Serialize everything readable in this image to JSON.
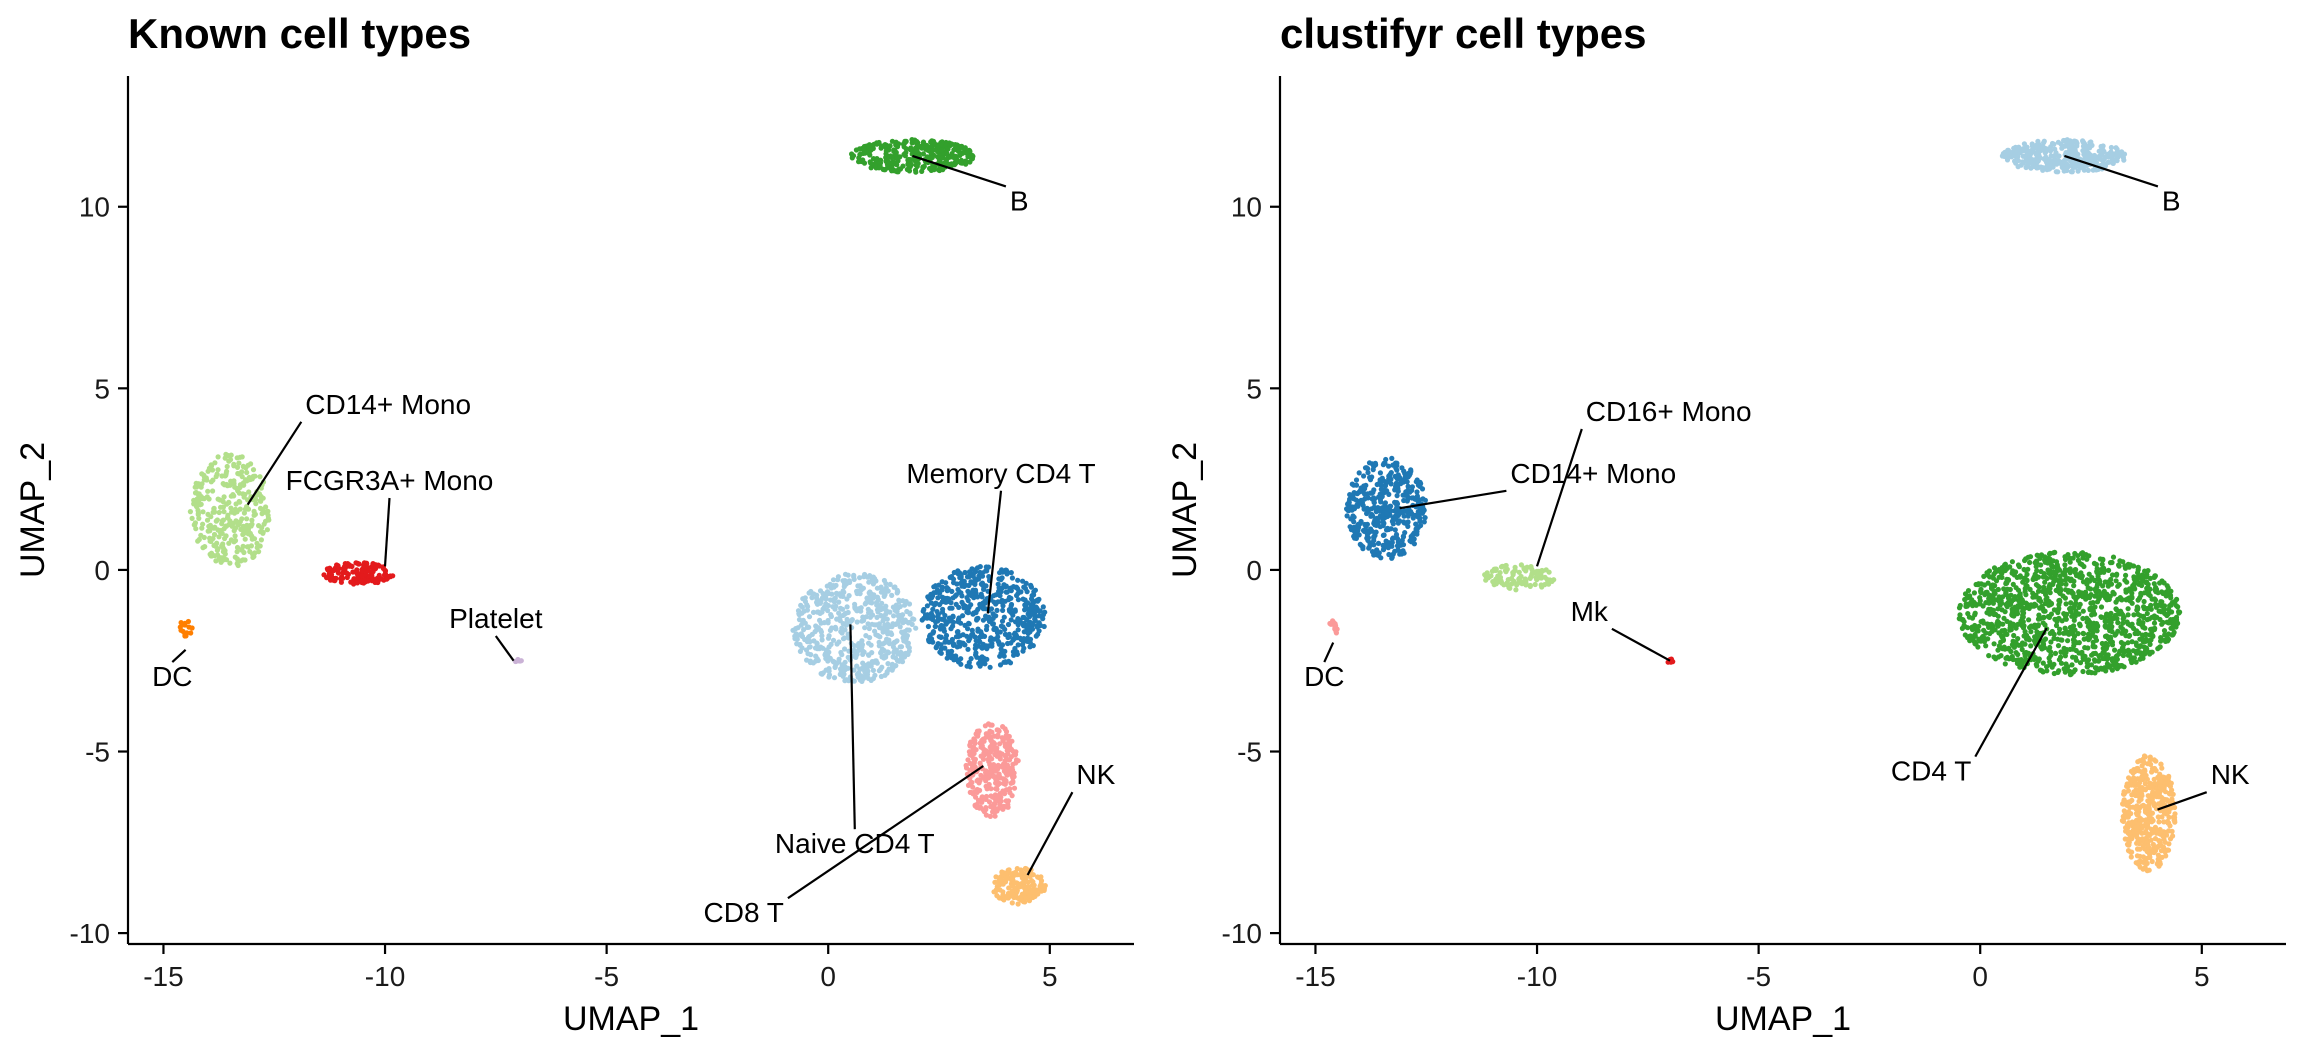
{
  "chart_data": [
    {
      "type": "scatter",
      "title": "Known cell types",
      "xlabel": "UMAP_1",
      "ylabel": "UMAP_2",
      "xlim": [
        -15.8,
        6.9
      ],
      "ylim": [
        -10.3,
        13.6
      ],
      "xticks": [
        -15,
        -10,
        -5,
        0,
        5
      ],
      "yticks": [
        -10,
        -5,
        0,
        5,
        10
      ],
      "grid": false,
      "legend": "none",
      "clusters": [
        {
          "name": "B",
          "color": "#33a02c",
          "center": [
            1.9,
            11.4
          ],
          "spread": [
            1.4,
            0.45
          ],
          "n": 340
        },
        {
          "name": "CD14+ Mono",
          "color": "#b2df8a",
          "center": [
            -13.5,
            1.6
          ],
          "spread": [
            0.9,
            1.6
          ],
          "n": 330
        },
        {
          "name": "FCGR3A+ Mono",
          "color": "#e31a1c",
          "center": [
            -10.6,
            -0.1
          ],
          "spread": [
            0.8,
            0.3
          ],
          "n": 150
        },
        {
          "name": "DC",
          "color": "#ff7f00",
          "center": [
            -14.5,
            -1.6
          ],
          "spread": [
            0.15,
            0.25
          ],
          "n": 16
        },
        {
          "name": "Platelet",
          "color": "#cab2d6",
          "center": [
            -7.0,
            -2.5
          ],
          "spread": [
            0.1,
            0.05
          ],
          "n": 6
        },
        {
          "name": "Memory CD4 T",
          "color": "#1f78b4",
          "center": [
            3.5,
            -1.3
          ],
          "spread": [
            1.4,
            1.4
          ],
          "n": 560
        },
        {
          "name": "Naive CD4 T",
          "color": "#a6cee3",
          "center": [
            0.6,
            -1.6
          ],
          "spread": [
            1.4,
            1.5
          ],
          "n": 560
        },
        {
          "name": "CD8 T",
          "color": "#fb9a99",
          "center": [
            3.7,
            -5.5
          ],
          "spread": [
            0.6,
            1.3
          ],
          "n": 300
        },
        {
          "name": "NK",
          "color": "#fdbf6f",
          "center": [
            4.3,
            -8.7
          ],
          "spread": [
            0.6,
            0.5
          ],
          "n": 160
        }
      ],
      "labels": [
        {
          "text": "B",
          "x": 4.1,
          "y": 9.9,
          "px": 1.9,
          "py": 11.4
        },
        {
          "text": "CD14+ Mono",
          "x": -11.8,
          "y": 4.3,
          "px": -13.1,
          "py": 1.8
        },
        {
          "text": "FCGR3A+ Mono",
          "x": -9.9,
          "y": 2.2,
          "px": -10.0,
          "py": 0.1
        },
        {
          "text": "Platelet",
          "x": -7.5,
          "y": -1.6,
          "px": -7.1,
          "py": -2.5
        },
        {
          "text": "DC",
          "x": -14.8,
          "y": -3.2,
          "px": -14.5,
          "py": -2.2
        },
        {
          "text": "Memory CD4 T",
          "x": 3.9,
          "y": 2.4,
          "px": 3.6,
          "py": -1.2
        },
        {
          "text": "Naive CD4 T",
          "x": 0.6,
          "y": -7.8,
          "px": 0.5,
          "py": -1.5
        },
        {
          "text": "CD8 T",
          "x": -1.0,
          "y": -9.7,
          "px": 3.5,
          "py": -5.4
        },
        {
          "text": "NK",
          "x": 5.6,
          "y": -5.9,
          "px": 4.5,
          "py": -8.4
        }
      ]
    },
    {
      "type": "scatter",
      "title": "clustifyr cell types",
      "xlabel": "UMAP_1",
      "ylabel": "UMAP_2",
      "xlim": [
        -15.8,
        6.9
      ],
      "ylim": [
        -10.3,
        13.6
      ],
      "xticks": [
        -15,
        -10,
        -5,
        0,
        5
      ],
      "yticks": [
        -10,
        -5,
        0,
        5,
        10
      ],
      "grid": false,
      "legend": "none",
      "clusters": [
        {
          "name": "B",
          "color": "#a6cee3",
          "center": [
            1.9,
            11.4
          ],
          "spread": [
            1.4,
            0.45
          ],
          "n": 340
        },
        {
          "name": "CD14+ Mono",
          "color": "#1f78b4",
          "center": [
            -13.4,
            1.7
          ],
          "spread": [
            0.9,
            1.4
          ],
          "n": 420
        },
        {
          "name": "CD16+ Mono",
          "color": "#b2df8a",
          "center": [
            -10.4,
            -0.2
          ],
          "spread": [
            0.8,
            0.35
          ],
          "n": 110
        },
        {
          "name": "DC",
          "color": "#fb9a99",
          "center": [
            -14.6,
            -1.6
          ],
          "spread": [
            0.12,
            0.2
          ],
          "n": 12
        },
        {
          "name": "Mk",
          "color": "#e31a1c",
          "center": [
            -7.0,
            -2.5
          ],
          "spread": [
            0.08,
            0.05
          ],
          "n": 6
        },
        {
          "name": "CD4 T",
          "color": "#33a02c",
          "center": [
            2.0,
            -1.2
          ],
          "spread": [
            2.5,
            1.7
          ],
          "n": 1250
        },
        {
          "name": "NK",
          "color": "#fdbf6f",
          "center": [
            3.8,
            -6.7
          ],
          "spread": [
            0.6,
            1.6
          ],
          "n": 420
        }
      ],
      "labels": [
        {
          "text": "B",
          "x": 4.1,
          "y": 9.9,
          "px": 1.9,
          "py": 11.4
        },
        {
          "text": "CD16+ Mono",
          "x": -8.9,
          "y": 4.1,
          "px": -10.0,
          "py": 0.1
        },
        {
          "text": "CD14+ Mono",
          "x": -10.6,
          "y": 2.4,
          "px": -13.1,
          "py": 1.7
        },
        {
          "text": "Mk",
          "x": -8.4,
          "y": -1.4,
          "px": -7.0,
          "py": -2.5
        },
        {
          "text": "DC",
          "x": -14.8,
          "y": -3.2,
          "px": -14.6,
          "py": -2.0
        },
        {
          "text": "CD4 T",
          "x": -0.2,
          "y": -5.8,
          "px": 1.5,
          "py": -1.6
        },
        {
          "text": "NK",
          "x": 5.2,
          "y": -5.9,
          "px": 4.0,
          "py": -6.6
        }
      ]
    }
  ]
}
